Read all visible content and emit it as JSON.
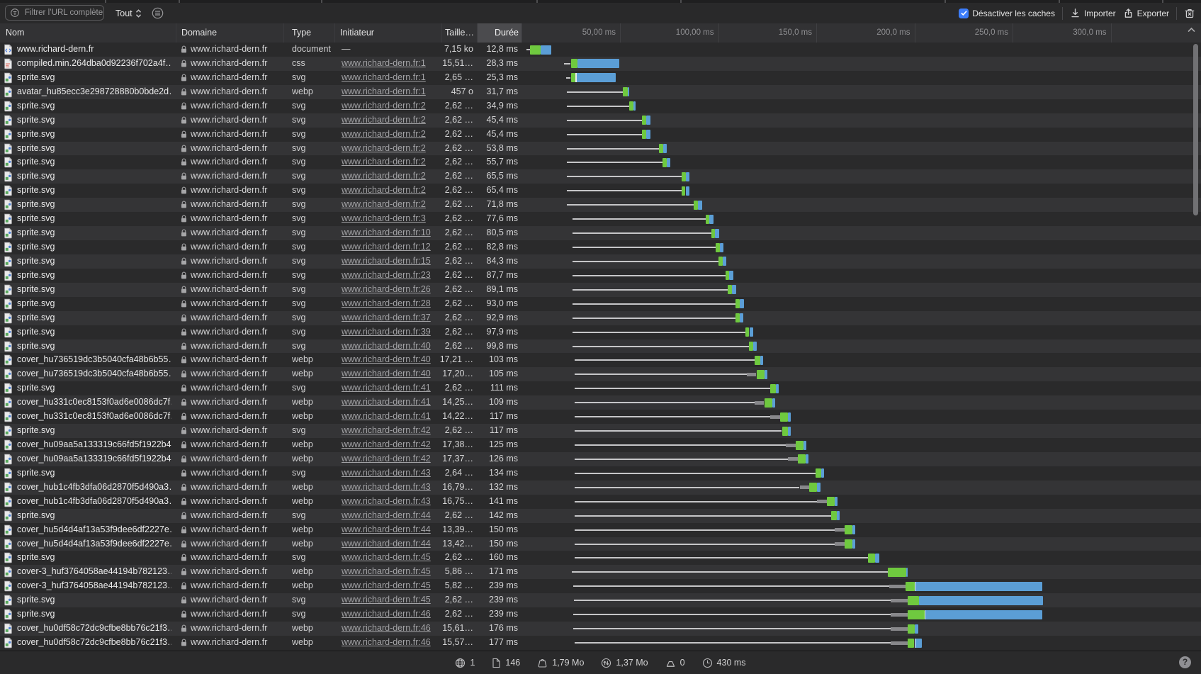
{
  "toolbar": {
    "filter_placeholder": "Filtrer l’URL complète",
    "scope_selected": "Tout",
    "disable_caches_label": "Désactiver les caches",
    "disable_caches_checked": true,
    "import_label": "Importer",
    "export_label": "Exporter"
  },
  "table": {
    "columns": {
      "nom": "Nom",
      "domaine": "Domaine",
      "type": "Type",
      "initiateur": "Initiateur",
      "taille": "Taille…",
      "duree": "Durée"
    }
  },
  "timeline": {
    "ticks": [
      {
        "ms": 50,
        "label": "50,00 ms"
      },
      {
        "ms": 100,
        "label": "100,00 ms"
      },
      {
        "ms": 150,
        "label": "150,0 ms"
      },
      {
        "ms": 200,
        "label": "200,0 ms"
      },
      {
        "ms": 250,
        "label": "250,0 ms"
      },
      {
        "ms": 300,
        "label": "300,0 ms"
      }
    ]
  },
  "colors": {
    "bar_green": "#6fc93f",
    "bar_blue": "#5b9ed6",
    "accent_blue": "#3c7dfb"
  },
  "rows": [
    {
      "name": "www.richard-dern.fr",
      "icon": "html",
      "domain": "www.richard-dern.fr",
      "type": "document",
      "initiator": "—",
      "link": false,
      "size": "7,15 ko",
      "duration": "12,8 ms",
      "wf": [
        2.3,
        null,
        4,
        9.5,
        15.1
      ],
      "tick": false
    },
    {
      "name": "compiled.min.264dba0d92236f702a4f…",
      "icon": "css",
      "domain": "www.richard-dern.fr",
      "type": "css",
      "initiator": "www.richard-dern.fr:1",
      "link": true,
      "size": "15,51…",
      "duration": "28,3 ms",
      "wf": [
        21.5,
        null,
        24.9,
        28.4,
        49.8
      ],
      "tick": false
    },
    {
      "name": "sprite.svg",
      "icon": "image",
      "domain": "www.richard-dern.fr",
      "type": "svg",
      "initiator": "www.richard-dern.fr:1",
      "link": true,
      "size": "2,65 …",
      "duration": "25,3 ms",
      "wf": [
        22.6,
        null,
        24.9,
        27.4,
        47.9
      ],
      "tick": true
    },
    {
      "name": "avatar_hu85ecc3e298728880b0bde2d…",
      "icon": "image",
      "domain": "www.richard-dern.fr",
      "type": "webp",
      "initiator": "www.richard-dern.fr:1",
      "link": true,
      "size": "457 o",
      "duration": "31,7 ms",
      "wf": [
        23,
        null,
        51.6,
        54,
        54.7
      ],
      "tick": false
    },
    {
      "name": "sprite.svg",
      "icon": "image",
      "domain": "www.richard-dern.fr",
      "type": "svg",
      "initiator": "www.richard-dern.fr:2",
      "link": true,
      "size": "2,62 …",
      "duration": "34,9 ms",
      "wf": [
        23,
        null,
        54.8,
        56.7,
        57.9
      ],
      "tick": false
    },
    {
      "name": "sprite.svg",
      "icon": "image",
      "domain": "www.richard-dern.fr",
      "type": "svg",
      "initiator": "www.richard-dern.fr:2",
      "link": true,
      "size": "2,62 …",
      "duration": "45,4 ms",
      "wf": [
        23,
        null,
        61.2,
        63.3,
        65.4
      ],
      "tick": false
    },
    {
      "name": "sprite.svg",
      "icon": "image",
      "domain": "www.richard-dern.fr",
      "type": "svg",
      "initiator": "www.richard-dern.fr:2",
      "link": true,
      "size": "2,62 …",
      "duration": "45,4 ms",
      "wf": [
        23,
        null,
        61.2,
        63.3,
        65.4
      ],
      "tick": false
    },
    {
      "name": "sprite.svg",
      "icon": "image",
      "domain": "www.richard-dern.fr",
      "type": "svg",
      "initiator": "www.richard-dern.fr:2",
      "link": true,
      "size": "2,62 …",
      "duration": "53,8 ms",
      "wf": [
        23,
        null,
        69.8,
        71.9,
        73.8
      ],
      "tick": false
    },
    {
      "name": "sprite.svg",
      "icon": "image",
      "domain": "www.richard-dern.fr",
      "type": "svg",
      "initiator": "www.richard-dern.fr:2",
      "link": true,
      "size": "2,62 …",
      "duration": "55,7 ms",
      "wf": [
        23,
        null,
        71.7,
        73.8,
        75.7
      ],
      "tick": false
    },
    {
      "name": "sprite.svg",
      "icon": "image",
      "domain": "www.richard-dern.fr",
      "type": "svg",
      "initiator": "www.richard-dern.fr:2",
      "link": true,
      "size": "2,62 …",
      "duration": "65,5 ms",
      "wf": [
        23,
        null,
        81.4,
        83.5,
        85.5
      ],
      "tick": false
    },
    {
      "name": "sprite.svg",
      "icon": "image",
      "domain": "www.richard-dern.fr",
      "type": "svg",
      "initiator": "www.richard-dern.fr:2",
      "link": true,
      "size": "2,62 …",
      "duration": "65,4 ms",
      "wf": [
        23,
        null,
        81.3,
        83.4,
        85.4
      ],
      "tick": false
    },
    {
      "name": "sprite.svg",
      "icon": "image",
      "domain": "www.richard-dern.fr",
      "type": "svg",
      "initiator": "www.richard-dern.fr:2",
      "link": true,
      "size": "2,62 …",
      "duration": "71,8 ms",
      "wf": [
        23,
        null,
        87.7,
        89.8,
        91.8
      ],
      "tick": false
    },
    {
      "name": "sprite.svg",
      "icon": "image",
      "domain": "www.richard-dern.fr",
      "type": "svg",
      "initiator": "www.richard-dern.fr:3",
      "link": true,
      "size": "2,62 …",
      "duration": "77,6 ms",
      "wf": [
        25.8,
        null,
        93.5,
        95.6,
        97.6
      ],
      "tick": false
    },
    {
      "name": "sprite.svg",
      "icon": "image",
      "domain": "www.richard-dern.fr",
      "type": "svg",
      "initiator": "www.richard-dern.fr:10",
      "link": true,
      "size": "2,62 …",
      "duration": "80,5 ms",
      "wf": [
        25.8,
        null,
        96.4,
        98.5,
        100.5
      ],
      "tick": false
    },
    {
      "name": "sprite.svg",
      "icon": "image",
      "domain": "www.richard-dern.fr",
      "type": "svg",
      "initiator": "www.richard-dern.fr:12",
      "link": true,
      "size": "2,62 …",
      "duration": "82,8 ms",
      "wf": [
        25.8,
        null,
        98.7,
        100.8,
        102.8
      ],
      "tick": false
    },
    {
      "name": "sprite.svg",
      "icon": "image",
      "domain": "www.richard-dern.fr",
      "type": "svg",
      "initiator": "www.richard-dern.fr:15",
      "link": true,
      "size": "2,62 …",
      "duration": "84,3 ms",
      "wf": [
        25.8,
        null,
        100.2,
        102.3,
        104.3
      ],
      "tick": false
    },
    {
      "name": "sprite.svg",
      "icon": "image",
      "domain": "www.richard-dern.fr",
      "type": "svg",
      "initiator": "www.richard-dern.fr:23",
      "link": true,
      "size": "2,62 …",
      "duration": "87,7 ms",
      "wf": [
        25.8,
        null,
        103.6,
        105.7,
        107.7
      ],
      "tick": false
    },
    {
      "name": "sprite.svg",
      "icon": "image",
      "domain": "www.richard-dern.fr",
      "type": "svg",
      "initiator": "www.richard-dern.fr:26",
      "link": true,
      "size": "2,62 …",
      "duration": "89,1 ms",
      "wf": [
        25.8,
        null,
        105,
        107.1,
        109.1
      ],
      "tick": false
    },
    {
      "name": "sprite.svg",
      "icon": "image",
      "domain": "www.richard-dern.fr",
      "type": "svg",
      "initiator": "www.richard-dern.fr:28",
      "link": true,
      "size": "2,62 …",
      "duration": "93,0 ms",
      "wf": [
        25.8,
        null,
        108.9,
        111,
        113
      ],
      "tick": false
    },
    {
      "name": "sprite.svg",
      "icon": "image",
      "domain": "www.richard-dern.fr",
      "type": "svg",
      "initiator": "www.richard-dern.fr:37",
      "link": true,
      "size": "2,62 …",
      "duration": "92,9 ms",
      "wf": [
        25.8,
        null,
        108.8,
        110.9,
        112.9
      ],
      "tick": false
    },
    {
      "name": "sprite.svg",
      "icon": "image",
      "domain": "www.richard-dern.fr",
      "type": "svg",
      "initiator": "www.richard-dern.fr:39",
      "link": true,
      "size": "2,62 …",
      "duration": "97,9 ms",
      "wf": [
        25.8,
        null,
        113.8,
        115.9,
        117.9
      ],
      "tick": false
    },
    {
      "name": "sprite.svg",
      "icon": "image",
      "domain": "www.richard-dern.fr",
      "type": "svg",
      "initiator": "www.richard-dern.fr:40",
      "link": true,
      "size": "2,62 …",
      "duration": "99,8 ms",
      "wf": [
        25.8,
        null,
        115.7,
        117.8,
        119.8
      ],
      "tick": false
    },
    {
      "name": "cover_hu736519dc3b5040cfa48b6b55…",
      "icon": "image",
      "domain": "www.richard-dern.fr",
      "type": "webp",
      "initiator": "www.richard-dern.fr:40",
      "link": true,
      "size": "17,21 …",
      "duration": "103 ms",
      "wf": [
        27,
        null,
        118.5,
        121.5,
        123
      ],
      "tick": false
    },
    {
      "name": "cover_hu736519dc3b5040cfa48b6b55…",
      "icon": "image",
      "domain": "www.richard-dern.fr",
      "type": "webp",
      "initiator": "www.richard-dern.fr:40",
      "link": true,
      "size": "17,20…",
      "duration": "105 ms",
      "wf": [
        27,
        114.5,
        119.5,
        123.5,
        125
      ],
      "tick": false
    },
    {
      "name": "sprite.svg",
      "icon": "image",
      "domain": "www.richard-dern.fr",
      "type": "svg",
      "initiator": "www.richard-dern.fr:41",
      "link": true,
      "size": "2,62 …",
      "duration": "111 ms",
      "wf": [
        27,
        null,
        126.5,
        129.5,
        131
      ],
      "tick": false
    },
    {
      "name": "cover_hu331c0ec8153f0ad6e0086dc7f…",
      "icon": "image",
      "domain": "www.richard-dern.fr",
      "type": "webp",
      "initiator": "www.richard-dern.fr:41",
      "link": true,
      "size": "14,25…",
      "duration": "109 ms",
      "wf": [
        27,
        118.5,
        123.5,
        127.5,
        129
      ],
      "tick": false
    },
    {
      "name": "cover_hu331c0ec8153f0ad6e0086dc7f…",
      "icon": "image",
      "domain": "www.richard-dern.fr",
      "type": "webp",
      "initiator": "www.richard-dern.fr:41",
      "link": true,
      "size": "14,22…",
      "duration": "117 ms",
      "wf": [
        27,
        126.5,
        131.5,
        135.5,
        137
      ],
      "tick": false
    },
    {
      "name": "sprite.svg",
      "icon": "image",
      "domain": "www.richard-dern.fr",
      "type": "svg",
      "initiator": "www.richard-dern.fr:42",
      "link": true,
      "size": "2,62 …",
      "duration": "117 ms",
      "wf": [
        27,
        null,
        132.5,
        135.5,
        137
      ],
      "tick": false
    },
    {
      "name": "cover_hu09aa5a133319c66fd5f1922b4…",
      "icon": "image",
      "domain": "www.richard-dern.fr",
      "type": "webp",
      "initiator": "www.richard-dern.fr:42",
      "link": true,
      "size": "17,38…",
      "duration": "125 ms",
      "wf": [
        27,
        134.5,
        139.5,
        143.5,
        145
      ],
      "tick": false
    },
    {
      "name": "cover_hu09aa5a133319c66fd5f1922b4…",
      "icon": "image",
      "domain": "www.richard-dern.fr",
      "type": "webp",
      "initiator": "www.richard-dern.fr:42",
      "link": true,
      "size": "17,37…",
      "duration": "126 ms",
      "wf": [
        27,
        135.5,
        140.5,
        144.5,
        146
      ],
      "tick": false
    },
    {
      "name": "sprite.svg",
      "icon": "image",
      "domain": "www.richard-dern.fr",
      "type": "svg",
      "initiator": "www.richard-dern.fr:43",
      "link": true,
      "size": "2,64 …",
      "duration": "134 ms",
      "wf": [
        27,
        null,
        149.5,
        152.5,
        154
      ],
      "tick": false
    },
    {
      "name": "cover_hub1c4fb3dfa06d2870f5d490a3…",
      "icon": "image",
      "domain": "www.richard-dern.fr",
      "type": "webp",
      "initiator": "www.richard-dern.fr:43",
      "link": true,
      "size": "16,79…",
      "duration": "132 ms",
      "wf": [
        27,
        141.5,
        146.5,
        150.5,
        152
      ],
      "tick": false
    },
    {
      "name": "cover_hub1c4fb3dfa06d2870f5d490a3…",
      "icon": "image",
      "domain": "www.richard-dern.fr",
      "type": "webp",
      "initiator": "www.richard-dern.fr:43",
      "link": true,
      "size": "16,75…",
      "duration": "141 ms",
      "wf": [
        27,
        150.5,
        155.5,
        159.5,
        161
      ],
      "tick": false
    },
    {
      "name": "sprite.svg",
      "icon": "image",
      "domain": "www.richard-dern.fr",
      "type": "svg",
      "initiator": "www.richard-dern.fr:44",
      "link": true,
      "size": "2,62 …",
      "duration": "142 ms",
      "wf": [
        27,
        null,
        157.5,
        160.5,
        162
      ],
      "tick": false
    },
    {
      "name": "cover_hu5d4d4af13a53f9dee6df2227e…",
      "icon": "image",
      "domain": "www.richard-dern.fr",
      "type": "webp",
      "initiator": "www.richard-dern.fr:44",
      "link": true,
      "size": "13,39…",
      "duration": "150 ms",
      "wf": [
        27,
        159.5,
        164.5,
        168.5,
        170
      ],
      "tick": false
    },
    {
      "name": "cover_hu5d4d4af13a53f9dee6df2227e…",
      "icon": "image",
      "domain": "www.richard-dern.fr",
      "type": "webp",
      "initiator": "www.richard-dern.fr:44",
      "link": true,
      "size": "13,42…",
      "duration": "150 ms",
      "wf": [
        27,
        159.5,
        164.5,
        168.5,
        170
      ],
      "tick": false
    },
    {
      "name": "sprite.svg",
      "icon": "image",
      "domain": "www.richard-dern.fr",
      "type": "svg",
      "initiator": "www.richard-dern.fr:45",
      "link": true,
      "size": "2,62 …",
      "duration": "160 ms",
      "wf": [
        27,
        null,
        176.5,
        180,
        182
      ],
      "tick": false
    },
    {
      "name": "cover-3_huf3764058ae44194b782123…",
      "icon": "image",
      "domain": "www.richard-dern.fr",
      "type": "webp",
      "initiator": "www.richard-dern.fr:45",
      "link": true,
      "size": "5,86 …",
      "duration": "171 ms",
      "wf": [
        25.6,
        null,
        186.5,
        196,
        196.6
      ],
      "tick": false
    },
    {
      "name": "cover-3_huf3764058ae44194b782123…",
      "icon": "image",
      "domain": "www.richard-dern.fr",
      "type": "webp",
      "initiator": "www.richard-dern.fr:45",
      "link": true,
      "size": "5,82 …",
      "duration": "239 ms",
      "wf": [
        26,
        187,
        195.5,
        200,
        265
      ],
      "tick": true
    },
    {
      "name": "sprite.svg",
      "icon": "image",
      "domain": "www.richard-dern.fr",
      "type": "svg",
      "initiator": "www.richard-dern.fr:45",
      "link": true,
      "size": "2,62 …",
      "duration": "239 ms",
      "wf": [
        26.5,
        188,
        196.6,
        202.4,
        265.5
      ],
      "tick": false
    },
    {
      "name": "sprite.svg",
      "icon": "image",
      "domain": "www.richard-dern.fr",
      "type": "svg",
      "initiator": "www.richard-dern.fr:46",
      "link": true,
      "size": "2,62 …",
      "duration": "239 ms",
      "wf": [
        26,
        188,
        196.6,
        205.2,
        265.2
      ],
      "tick": true
    },
    {
      "name": "cover_hu0df58c72dc9cfbe8bb76c21f3…",
      "icon": "image",
      "domain": "www.richard-dern.fr",
      "type": "webp",
      "initiator": "www.richard-dern.fr:46",
      "link": true,
      "size": "15,61…",
      "duration": "176 ms",
      "wf": [
        26,
        188,
        196.6,
        200.2,
        202
      ],
      "tick": false
    },
    {
      "name": "cover_hu0df58c72dc9cfbe8bb76c21f3…",
      "icon": "image",
      "domain": "www.richard-dern.fr",
      "type": "webp",
      "initiator": "www.richard-dern.fr:46",
      "link": true,
      "size": "15,57…",
      "duration": "177 ms",
      "wf": [
        26.8,
        188,
        196.6,
        200,
        203.8
      ],
      "tick": true
    }
  ],
  "status_bar": {
    "domains": "1",
    "resources": "146",
    "total_size": "1,79 Mo",
    "transferred": "1,37 Mo",
    "cached": "0",
    "load_time": "430 ms",
    "help": "?"
  }
}
